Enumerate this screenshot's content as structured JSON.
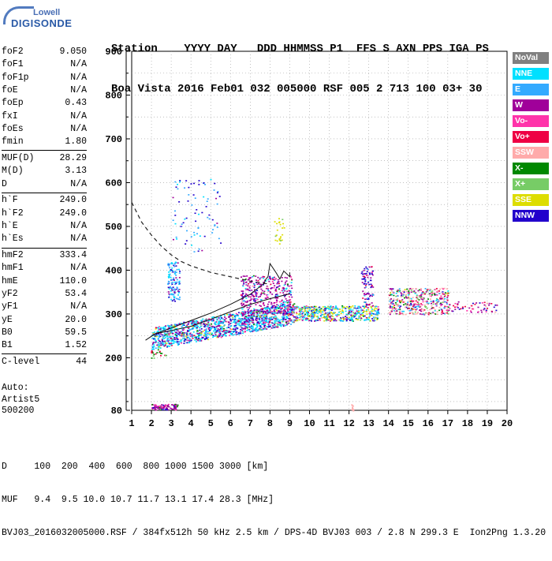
{
  "logo": {
    "line1": "Lowell",
    "line2": "DIGISONDE"
  },
  "header": {
    "row1": "Station    YYYY DAY   DDD HHMMSS P1  FFS S AXN PPS IGA PS",
    "row2": "Boa Vista 2016 Feb01 032 005000 RSF 005 2 713 100 03+ 30"
  },
  "params": {
    "group1": [
      {
        "label": "foF2",
        "value": "9.050"
      },
      {
        "label": "foF1",
        "value": "N/A"
      },
      {
        "label": "foF1p",
        "value": "N/A"
      },
      {
        "label": "foE",
        "value": "N/A"
      },
      {
        "label": "foEp",
        "value": "0.43"
      },
      {
        "label": "fxI",
        "value": "N/A"
      },
      {
        "label": "foEs",
        "value": "N/A"
      },
      {
        "label": "fmin",
        "value": "1.80"
      }
    ],
    "group2": [
      {
        "label": "MUF(D)",
        "value": "28.29"
      },
      {
        "label": "M(D)",
        "value": "3.13"
      },
      {
        "label": "D",
        "value": "N/A"
      }
    ],
    "group3": [
      {
        "label": "h`F",
        "value": "249.0"
      },
      {
        "label": "h`F2",
        "value": "249.0"
      },
      {
        "label": "h`E",
        "value": "N/A"
      },
      {
        "label": "h`Es",
        "value": "N/A"
      }
    ],
    "group4": [
      {
        "label": "hmF2",
        "value": "333.4"
      },
      {
        "label": "hmF1",
        "value": "N/A"
      },
      {
        "label": "hmE",
        "value": "110.0"
      },
      {
        "label": "yF2",
        "value": "53.4"
      },
      {
        "label": "yF1",
        "value": "N/A"
      },
      {
        "label": "yE",
        "value": "20.0"
      },
      {
        "label": "B0",
        "value": "59.5"
      },
      {
        "label": "B1",
        "value": "1.52"
      }
    ],
    "group5": [
      {
        "label": "C-level",
        "value": "44"
      }
    ]
  },
  "auto": {
    "line1": "Auto:",
    "line2": "Artist5",
    "line3": "500200"
  },
  "legend": [
    {
      "label": "NoVal",
      "color": "#808080"
    },
    {
      "label": "NNE",
      "color": "#00e0ff"
    },
    {
      "label": "E",
      "color": "#33aaff"
    },
    {
      "label": "W",
      "color": "#a0009a"
    },
    {
      "label": "Vo-",
      "color": "#ff33aa"
    },
    {
      "label": "Vo+",
      "color": "#ee0044"
    },
    {
      "label": "SSW",
      "color": "#ffaaaa"
    },
    {
      "label": "X-",
      "color": "#008800"
    },
    {
      "label": "X+",
      "color": "#77cc66"
    },
    {
      "label": "SSE",
      "color": "#dddd00"
    },
    {
      "label": "NNW",
      "color": "#2200cc"
    }
  ],
  "chart_data": {
    "type": "scatter",
    "xlim": [
      1,
      20
    ],
    "ylim": [
      80,
      900
    ],
    "x_ticks": [
      1,
      2,
      3,
      4,
      5,
      6,
      7,
      8,
      9,
      10,
      11,
      12,
      13,
      14,
      15,
      16,
      17,
      18,
      19,
      20
    ],
    "y_ticks": [
      80,
      200,
      300,
      400,
      500,
      600,
      700,
      800,
      900
    ],
    "grid": true,
    "legend_placement": "right",
    "trace_points": [
      [
        1.7,
        240
      ],
      [
        2.2,
        255
      ],
      [
        3,
        262
      ],
      [
        4,
        272
      ],
      [
        5,
        288
      ],
      [
        6,
        305
      ],
      [
        7,
        322
      ],
      [
        8,
        335
      ],
      [
        9,
        346
      ]
    ],
    "trace_upper": [
      [
        2.2,
        255
      ],
      [
        3,
        268
      ],
      [
        4,
        285
      ],
      [
        5,
        302
      ],
      [
        6,
        322
      ],
      [
        7,
        345
      ],
      [
        7.7,
        370
      ],
      [
        7.8,
        380
      ],
      [
        7.9,
        385
      ],
      [
        8,
        415
      ],
      [
        8.3,
        395
      ],
      [
        8.5,
        380
      ],
      [
        8.7,
        398
      ],
      [
        9,
        385
      ],
      [
        9,
        395
      ]
    ],
    "profile_dashed": [
      [
        1,
        555
      ],
      [
        1.5,
        510
      ],
      [
        2,
        480
      ],
      [
        2.5,
        455
      ],
      [
        3,
        435
      ],
      [
        3.5,
        420
      ],
      [
        4,
        410
      ],
      [
        5,
        395
      ],
      [
        6,
        385
      ],
      [
        7,
        375
      ],
      [
        8,
        368
      ]
    ]
  },
  "bottom": {
    "row1": "D     100  200  400  600  800 1000 1500 3000 [km]",
    "row2": "MUF   9.4  9.5 10.0 10.7 11.7 13.1 17.4 28.3 [MHz]",
    "row3": "BVJ03_2016032005000.RSF / 384fx512h 50 kHz 2.5 km / DPS-4D BVJ03 003 / 2.8 N 299.3 E  Ion2Png 1.3.20"
  }
}
